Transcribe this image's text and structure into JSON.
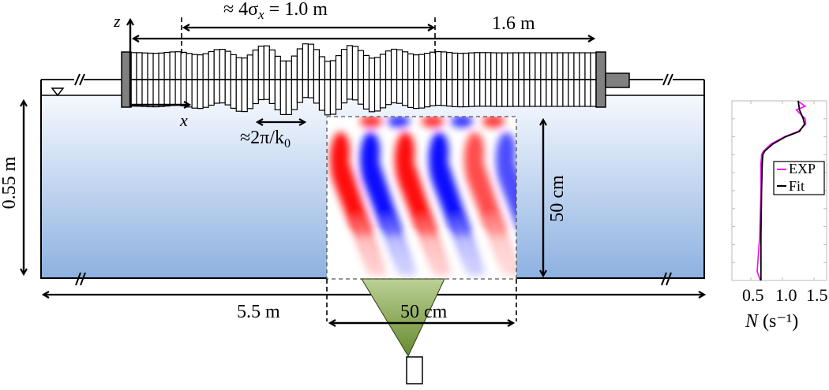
{
  "diagram": {
    "type": "experimental-setup-schematic",
    "tank": {
      "length_label": "5.5 m",
      "depth_label": "0.55 m",
      "water_gradient": {
        "top": "#f4f8fd",
        "bottom": "#8fb3e2"
      },
      "break_marks": [
        "top-left",
        "top-right",
        "bottom-left",
        "bottom-right"
      ],
      "free_surface_symbol": "triangle-down"
    },
    "wavemaker": {
      "total_length_label": "1.6 m",
      "envelope_label_prefix": "≈ 4σ",
      "envelope_label_sub": "x",
      "envelope_label_suffix": " = 1.0 m",
      "wavelength_label_prefix": "≈2π/k",
      "wavelength_label_sub": "0",
      "plate_count": 84,
      "end_block_color": "#808080"
    },
    "axes": {
      "z_label": "z",
      "x_label": "x"
    },
    "piv_window": {
      "width_label": "50 cm",
      "height_label": "50 cm",
      "positive_color": "#ff0000",
      "negative_color": "#0000ff"
    },
    "camera": {
      "fov_color_top": "#b5cc8e",
      "fov_color_bottom": "#6e8f35"
    }
  },
  "chart_data": {
    "type": "line",
    "title": "",
    "xlabel_symbol": "N",
    "xlabel_units": "(s⁻¹)",
    "xlabel": "N (s^-1)",
    "ylabel": "",
    "x_ticks": [
      "0.5",
      "1.0",
      "1.5"
    ],
    "xlim": [
      0.2,
      1.7
    ],
    "legend": [
      {
        "name": "EXP",
        "color": "#ff00ff"
      },
      {
        "name": "Fit",
        "color": "#000000"
      }
    ],
    "legend_position": "center-right",
    "series": [
      {
        "name": "Fit",
        "depth_fraction_from_top": [
          0.0,
          0.05,
          0.1,
          0.13,
          0.17,
          0.2,
          0.24,
          0.28,
          0.3,
          0.35,
          0.5,
          0.75,
          1.0
        ],
        "N": [
          1.25,
          1.27,
          1.33,
          1.35,
          1.27,
          1.05,
          0.85,
          0.72,
          0.69,
          0.68,
          0.67,
          0.66,
          0.66
        ]
      },
      {
        "name": "EXP",
        "depth_fraction_from_top": [
          0.0,
          0.03,
          0.05,
          0.1,
          0.13,
          0.17,
          0.2,
          0.24,
          0.28,
          0.3,
          0.35,
          0.5,
          0.75,
          0.95,
          1.0
        ],
        "N": [
          1.24,
          1.36,
          1.22,
          1.36,
          1.37,
          1.25,
          1.03,
          0.82,
          0.7,
          0.67,
          0.66,
          0.66,
          0.64,
          0.6,
          0.65
        ]
      }
    ]
  }
}
